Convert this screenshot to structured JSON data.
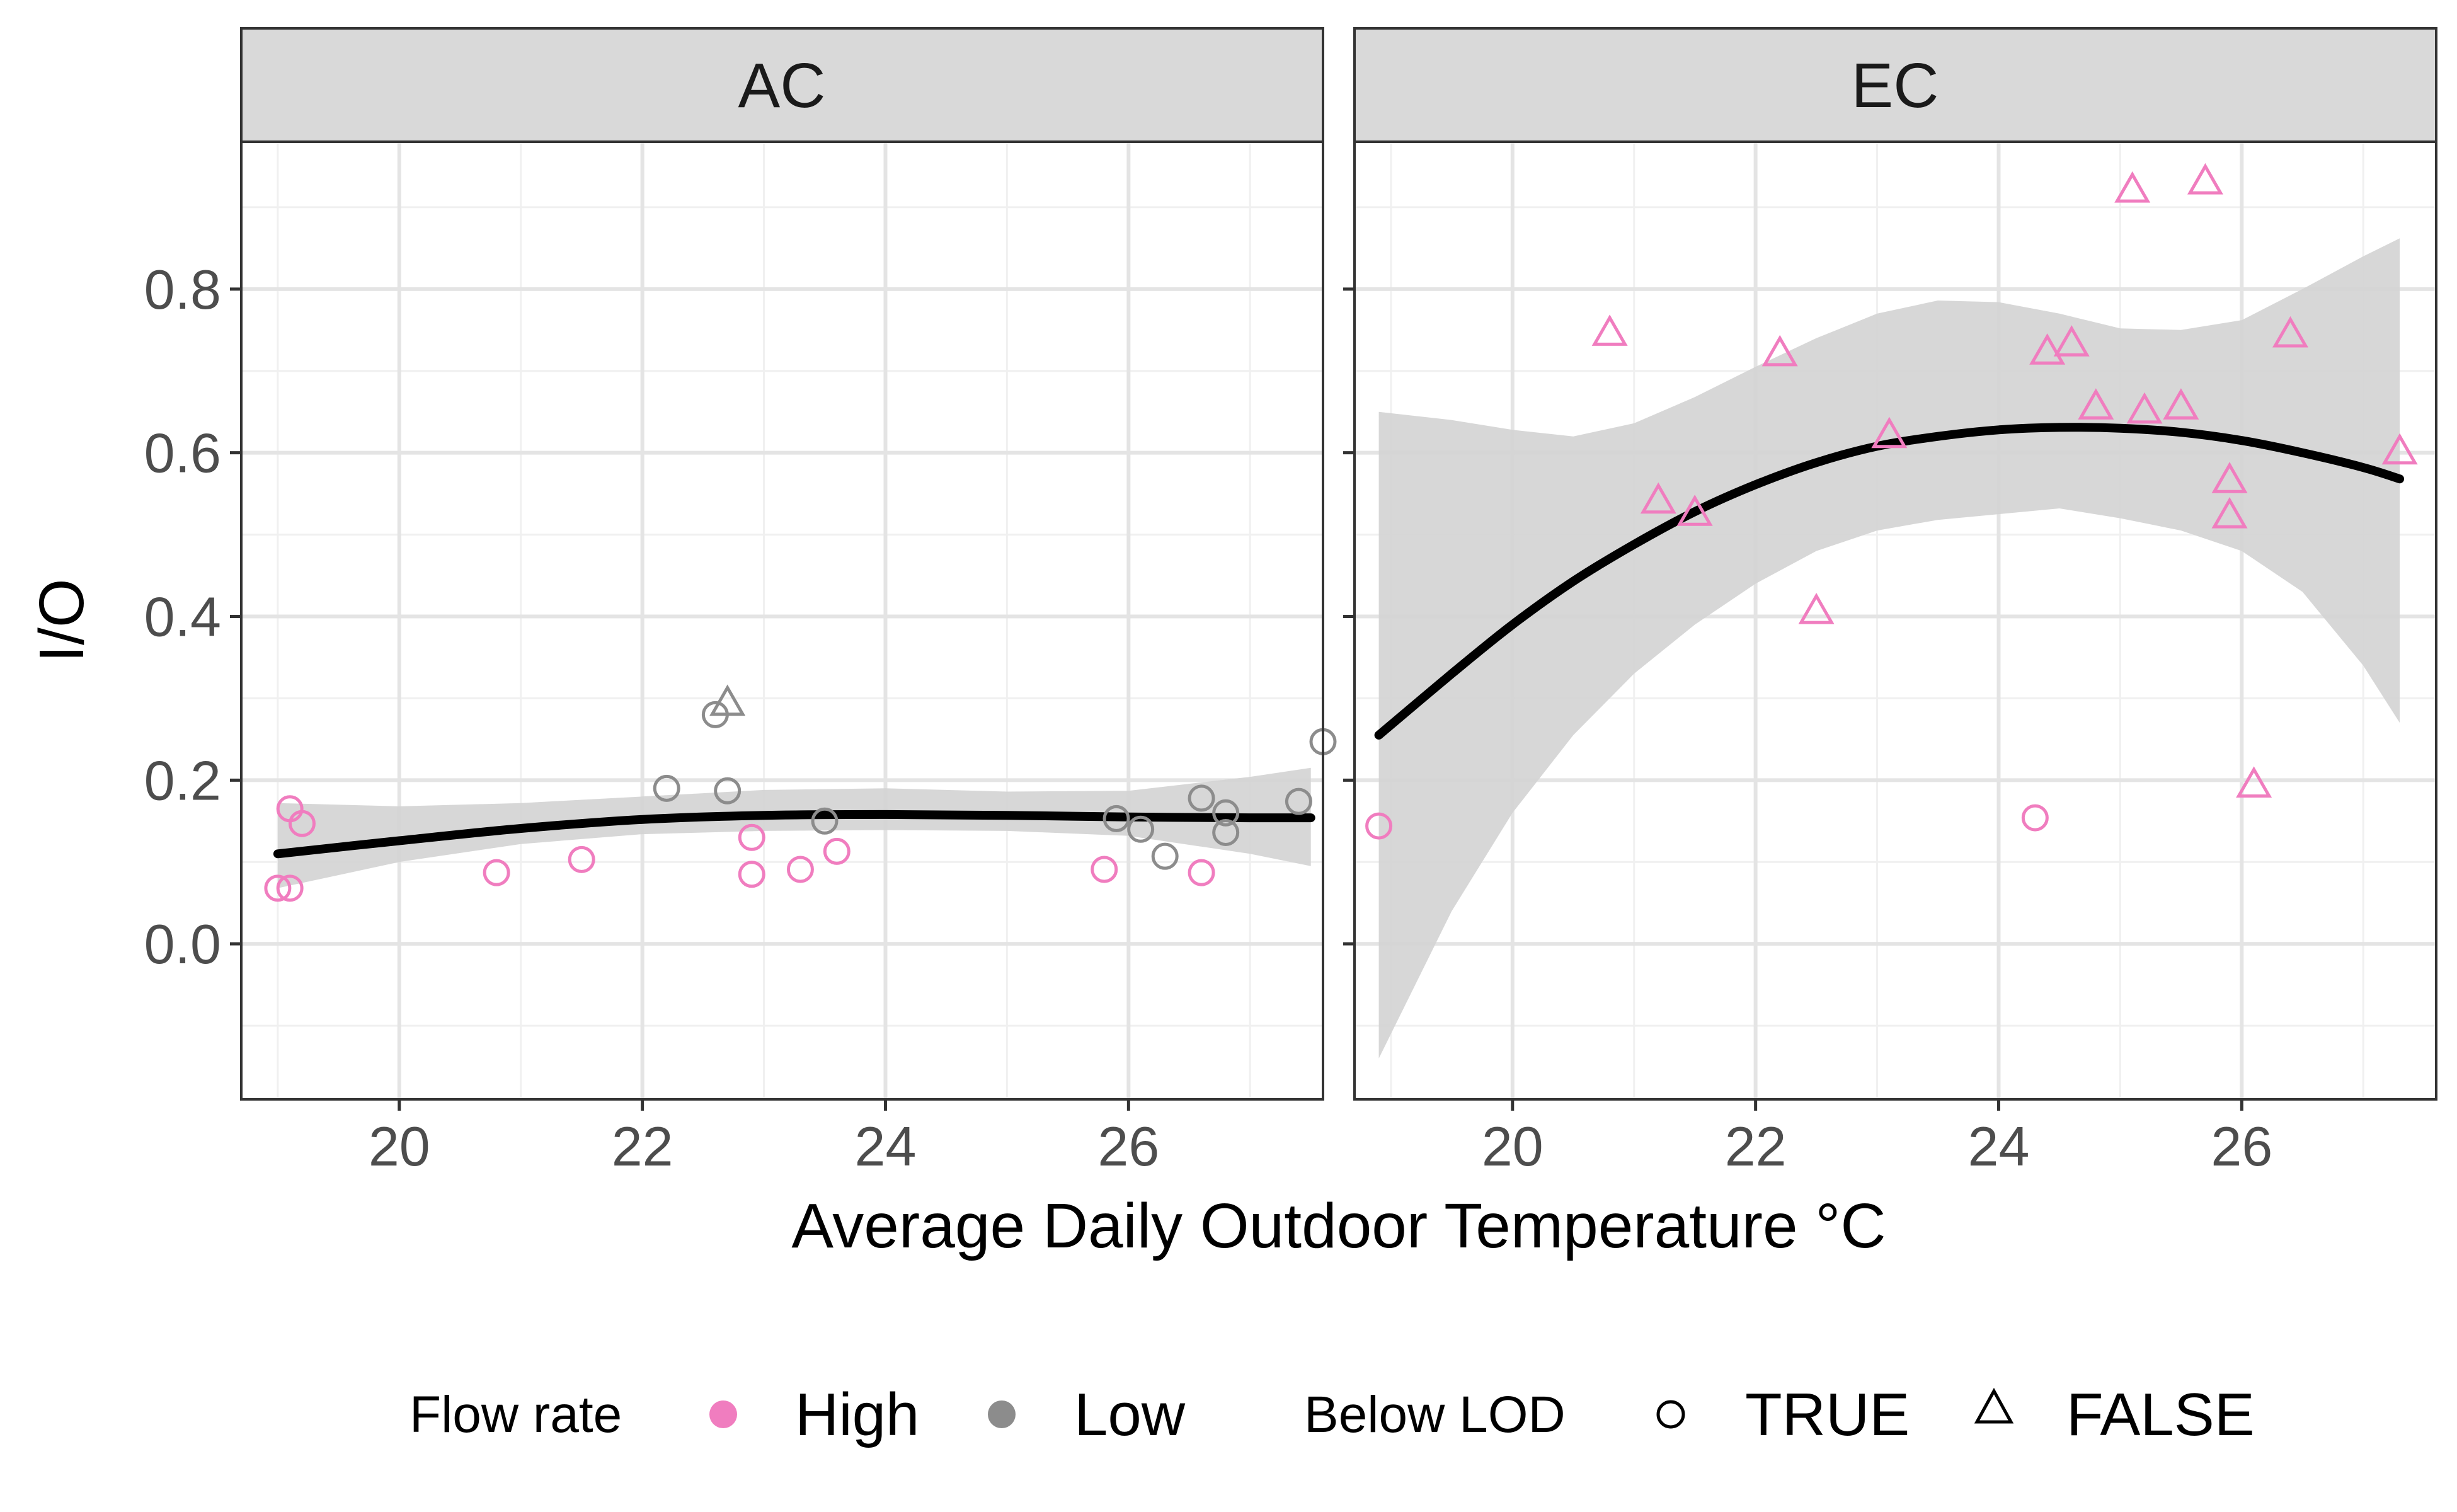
{
  "chart_data": {
    "type": "scatter",
    "xlabel": "Average Daily Outdoor Temperature °C",
    "ylabel": "I/O",
    "xlim": [
      18.7,
      27.6
    ],
    "xticks": [
      20,
      22,
      24,
      26
    ],
    "ylim": [
      -0.19,
      0.98
    ],
    "yticks": [
      0.0,
      0.2,
      0.4,
      0.6,
      0.8
    ],
    "ytick_labels": [
      "0.0",
      "0.2",
      "0.4",
      "0.6",
      "0.8"
    ],
    "xtick_labels": [
      "20",
      "22",
      "24",
      "26"
    ],
    "grid": true,
    "colors": {
      "High": "#f07dbf",
      "Low": "#8c8c8c",
      "fit": "#000000",
      "ribbon": "#d3d3d3",
      "strip": "#d9d9d9"
    },
    "legend": {
      "position": "bottom",
      "color_title": "Flow rate",
      "color_items": [
        {
          "label": "High",
          "color": "#f07dbf"
        },
        {
          "label": "Low",
          "color": "#8c8c8c"
        }
      ],
      "shape_title": "Below LOD",
      "shape_items": [
        {
          "label": "TRUE",
          "shape": "circle"
        },
        {
          "label": "FALSE",
          "shape": "triangle"
        }
      ]
    },
    "panels": [
      {
        "title": "AC",
        "points": [
          {
            "x": 19.0,
            "y": 0.068,
            "flow": "High",
            "lod": "TRUE"
          },
          {
            "x": 19.1,
            "y": 0.068,
            "flow": "High",
            "lod": "TRUE"
          },
          {
            "x": 19.1,
            "y": 0.165,
            "flow": "High",
            "lod": "TRUE"
          },
          {
            "x": 19.2,
            "y": 0.147,
            "flow": "High",
            "lod": "TRUE"
          },
          {
            "x": 20.8,
            "y": 0.087,
            "flow": "High",
            "lod": "TRUE"
          },
          {
            "x": 21.5,
            "y": 0.103,
            "flow": "High",
            "lod": "TRUE"
          },
          {
            "x": 22.9,
            "y": 0.085,
            "flow": "High",
            "lod": "TRUE"
          },
          {
            "x": 22.9,
            "y": 0.13,
            "flow": "High",
            "lod": "TRUE"
          },
          {
            "x": 23.3,
            "y": 0.091,
            "flow": "High",
            "lod": "TRUE"
          },
          {
            "x": 23.6,
            "y": 0.113,
            "flow": "High",
            "lod": "TRUE"
          },
          {
            "x": 25.8,
            "y": 0.091,
            "flow": "High",
            "lod": "TRUE"
          },
          {
            "x": 26.6,
            "y": 0.087,
            "flow": "High",
            "lod": "TRUE"
          },
          {
            "x": 22.2,
            "y": 0.19,
            "flow": "Low",
            "lod": "TRUE"
          },
          {
            "x": 22.6,
            "y": 0.28,
            "flow": "Low",
            "lod": "TRUE"
          },
          {
            "x": 22.7,
            "y": 0.293,
            "flow": "Low",
            "lod": "FALSE"
          },
          {
            "x": 22.7,
            "y": 0.187,
            "flow": "Low",
            "lod": "TRUE"
          },
          {
            "x": 23.5,
            "y": 0.15,
            "flow": "Low",
            "lod": "TRUE"
          },
          {
            "x": 25.9,
            "y": 0.153,
            "flow": "Low",
            "lod": "TRUE"
          },
          {
            "x": 26.1,
            "y": 0.14,
            "flow": "Low",
            "lod": "TRUE"
          },
          {
            "x": 26.3,
            "y": 0.107,
            "flow": "Low",
            "lod": "TRUE"
          },
          {
            "x": 26.6,
            "y": 0.178,
            "flow": "Low",
            "lod": "TRUE"
          },
          {
            "x": 26.8,
            "y": 0.16,
            "flow": "Low",
            "lod": "TRUE"
          },
          {
            "x": 26.8,
            "y": 0.136,
            "flow": "Low",
            "lod": "TRUE"
          },
          {
            "x": 27.4,
            "y": 0.174,
            "flow": "Low",
            "lod": "TRUE"
          },
          {
            "x": 27.6,
            "y": 0.247,
            "flow": "Low",
            "lod": "TRUE"
          }
        ],
        "fit": {
          "x": [
            19.0,
            20.0,
            21.0,
            22.0,
            23.0,
            24.0,
            25.0,
            26.0,
            27.0,
            27.5
          ],
          "y": [
            0.11,
            0.126,
            0.141,
            0.152,
            0.157,
            0.158,
            0.157,
            0.155,
            0.154,
            0.154
          ],
          "lower": [
            0.068,
            0.1,
            0.122,
            0.134,
            0.138,
            0.139,
            0.138,
            0.132,
            0.11,
            0.095
          ],
          "upper": [
            0.172,
            0.168,
            0.172,
            0.18,
            0.188,
            0.19,
            0.186,
            0.187,
            0.204,
            0.215
          ]
        }
      },
      {
        "title": "EC",
        "points": [
          {
            "x": 18.9,
            "y": 0.144,
            "flow": "High",
            "lod": "TRUE"
          },
          {
            "x": 24.3,
            "y": 0.154,
            "flow": "High",
            "lod": "TRUE"
          },
          {
            "x": 20.8,
            "y": 0.745,
            "flow": "High",
            "lod": "FALSE"
          },
          {
            "x": 21.2,
            "y": 0.54,
            "flow": "High",
            "lod": "FALSE"
          },
          {
            "x": 21.5,
            "y": 0.525,
            "flow": "High",
            "lod": "FALSE"
          },
          {
            "x": 22.2,
            "y": 0.72,
            "flow": "High",
            "lod": "FALSE"
          },
          {
            "x": 22.5,
            "y": 0.405,
            "flow": "High",
            "lod": "FALSE"
          },
          {
            "x": 23.1,
            "y": 0.62,
            "flow": "High",
            "lod": "FALSE"
          },
          {
            "x": 24.4,
            "y": 0.722,
            "flow": "High",
            "lod": "FALSE"
          },
          {
            "x": 24.6,
            "y": 0.732,
            "flow": "High",
            "lod": "FALSE"
          },
          {
            "x": 24.8,
            "y": 0.655,
            "flow": "High",
            "lod": "FALSE"
          },
          {
            "x": 25.1,
            "y": 0.92,
            "flow": "High",
            "lod": "FALSE"
          },
          {
            "x": 25.2,
            "y": 0.65,
            "flow": "High",
            "lod": "FALSE"
          },
          {
            "x": 25.5,
            "y": 0.655,
            "flow": "High",
            "lod": "FALSE"
          },
          {
            "x": 25.7,
            "y": 0.93,
            "flow": "High",
            "lod": "FALSE"
          },
          {
            "x": 25.9,
            "y": 0.565,
            "flow": "High",
            "lod": "FALSE"
          },
          {
            "x": 25.9,
            "y": 0.522,
            "flow": "High",
            "lod": "FALSE"
          },
          {
            "x": 26.1,
            "y": 0.193,
            "flow": "High",
            "lod": "FALSE"
          },
          {
            "x": 26.4,
            "y": 0.743,
            "flow": "High",
            "lod": "FALSE"
          },
          {
            "x": 27.3,
            "y": 0.6,
            "flow": "High",
            "lod": "FALSE"
          }
        ],
        "fit": {
          "x": [
            18.9,
            19.5,
            20.0,
            20.5,
            21.0,
            21.5,
            22.0,
            22.5,
            23.0,
            23.5,
            24.0,
            24.5,
            25.0,
            25.5,
            26.0,
            26.5,
            27.0,
            27.3
          ],
          "y": [
            0.255,
            0.33,
            0.39,
            0.443,
            0.488,
            0.528,
            0.561,
            0.588,
            0.608,
            0.62,
            0.628,
            0.631,
            0.63,
            0.625,
            0.615,
            0.6,
            0.582,
            0.568
          ],
          "lower": [
            -0.14,
            0.04,
            0.16,
            0.255,
            0.33,
            0.39,
            0.44,
            0.48,
            0.505,
            0.518,
            0.525,
            0.532,
            0.52,
            0.505,
            0.48,
            0.43,
            0.34,
            0.27
          ],
          "upper": [
            0.65,
            0.64,
            0.628,
            0.62,
            0.636,
            0.668,
            0.705,
            0.74,
            0.77,
            0.786,
            0.784,
            0.77,
            0.752,
            0.75,
            0.762,
            0.8,
            0.84,
            0.862
          ]
        }
      }
    ]
  }
}
